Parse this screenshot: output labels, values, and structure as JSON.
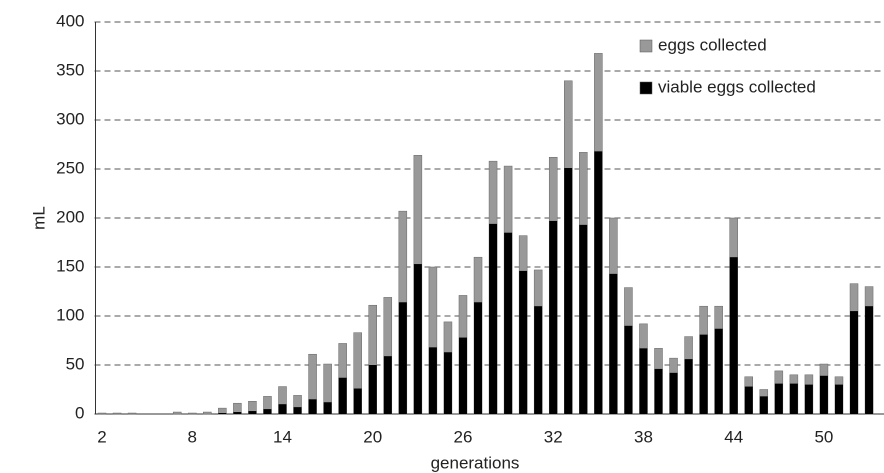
{
  "chart_data": {
    "type": "bar",
    "xlabel": "generations",
    "ylabel": "mL",
    "categories": [
      "2",
      null,
      null,
      null,
      null,
      null,
      "8",
      null,
      null,
      null,
      null,
      null,
      "14",
      null,
      null,
      null,
      null,
      null,
      "20",
      null,
      null,
      null,
      null,
      null,
      "26",
      null,
      null,
      null,
      null,
      null,
      "32",
      null,
      null,
      null,
      null,
      null,
      "38",
      null,
      null,
      null,
      null,
      null,
      "44",
      null,
      null,
      null,
      null,
      null,
      "50",
      null,
      null,
      null
    ],
    "series": [
      {
        "name": "eggs collected",
        "color": "#999999",
        "values": [
          1,
          1,
          1,
          0,
          0,
          2,
          1,
          2,
          6,
          11,
          13,
          18,
          28,
          19,
          61,
          51,
          72,
          83,
          111,
          119,
          207,
          264,
          150,
          94,
          121,
          160,
          258,
          253,
          182,
          147,
          262,
          340,
          267,
          368,
          200,
          129,
          92,
          67,
          57,
          79,
          110,
          110,
          200,
          38,
          25,
          44,
          40,
          40,
          51,
          38,
          133,
          130
        ]
      },
      {
        "name": "viable eggs collected",
        "color": "#000000",
        "values": [
          0,
          0,
          0,
          0,
          0,
          0,
          0,
          0,
          1,
          2,
          3,
          5,
          10,
          7,
          15,
          12,
          37,
          26,
          50,
          59,
          114,
          153,
          68,
          63,
          78,
          114,
          194,
          185,
          146,
          110,
          197,
          251,
          193,
          268,
          143,
          90,
          67,
          46,
          42,
          56,
          81,
          87,
          160,
          28,
          18,
          31,
          31,
          30,
          39,
          30,
          105,
          110
        ]
      }
    ],
    "ylim": [
      0,
      400
    ],
    "yticks": [
      0,
      50,
      100,
      150,
      200,
      250,
      300,
      350,
      400
    ],
    "grid": true,
    "legend": "upper right"
  }
}
